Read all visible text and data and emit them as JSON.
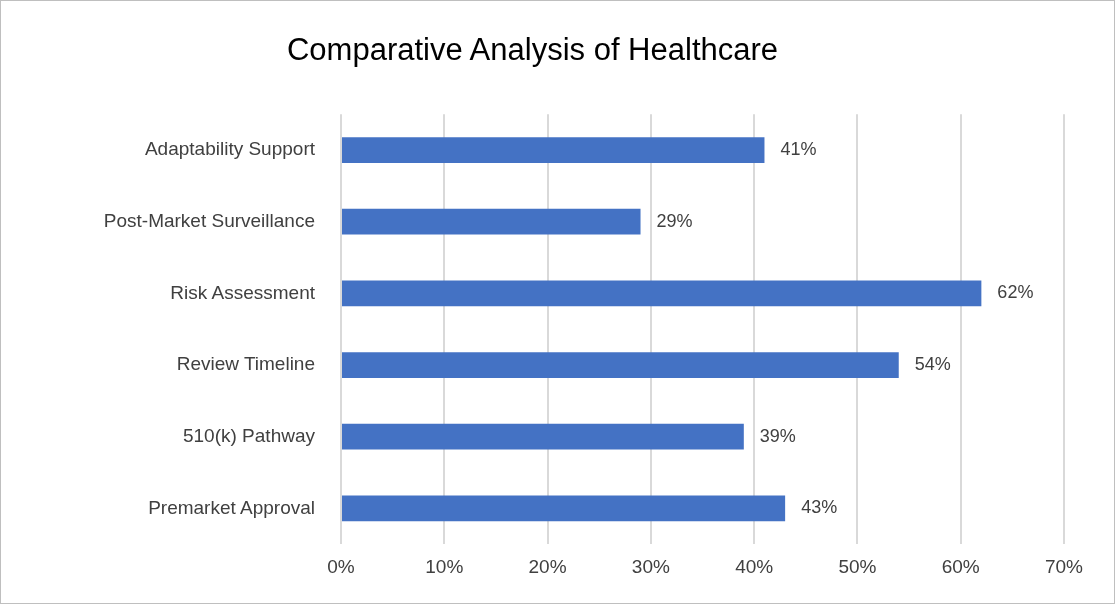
{
  "chart_data": {
    "type": "bar",
    "orientation": "horizontal",
    "title": "Comparative Analysis of Healthcare",
    "categories": [
      "Adaptability Support",
      "Post-Market Surveillance",
      "Risk Assessment",
      "Review Timeline",
      "510(k) Pathway",
      "Premarket Approval"
    ],
    "values": [
      41,
      29,
      62,
      54,
      39,
      43
    ],
    "value_labels": [
      "41%",
      "29%",
      "62%",
      "54%",
      "39%",
      "43%"
    ],
    "color": "#4472c4",
    "xlim": [
      0,
      70
    ],
    "xticks": [
      {
        "value": 0,
        "label": "0%"
      },
      {
        "value": 10,
        "label": "10%"
      },
      {
        "value": 20,
        "label": "20%"
      },
      {
        "value": 30,
        "label": "30%"
      },
      {
        "value": 40,
        "label": "40%"
      },
      {
        "value": 50,
        "label": "50%"
      },
      {
        "value": 60,
        "label": "60%"
      },
      {
        "value": 70,
        "label": "70%"
      }
    ],
    "grid": "x",
    "legend": false
  }
}
